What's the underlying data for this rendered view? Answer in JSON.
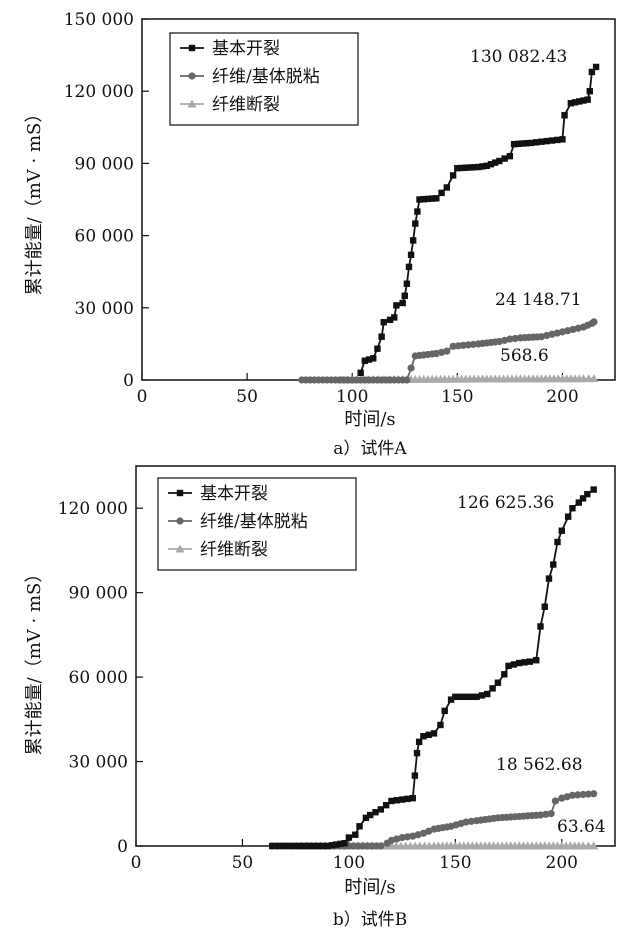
{
  "chart_data": [
    {
      "type": "line",
      "caption": "a）试件A",
      "xlabel": "时间/s",
      "ylabel": "累计能量/（mV · mS）",
      "xlim": [
        0,
        225
      ],
      "ylim": [
        0,
        150000
      ],
      "xticks": [
        "0",
        "50",
        "100",
        "150",
        "200"
      ],
      "yticks": [
        "0",
        "30 000",
        "60 000",
        "90 000",
        "120 000",
        "150 000"
      ],
      "legend_position": "top-left",
      "annotations": [
        "130 082.43",
        "24 148.71",
        "568.6"
      ],
      "series": [
        {
          "name": "基本开裂",
          "color": "#111111",
          "marker": "square",
          "final_value": 130082.43,
          "points": [
            [
              104,
              3000
            ],
            [
              106,
              8000
            ],
            [
              110,
              9000
            ],
            [
              112,
              13000
            ],
            [
              114,
              18000
            ],
            [
              115,
              24000
            ],
            [
              118,
              25000
            ],
            [
              120,
              26000
            ],
            [
              121,
              31000
            ],
            [
              124,
              32000
            ],
            [
              125,
              35000
            ],
            [
              126,
              40000
            ],
            [
              127,
              47000
            ],
            [
              128,
              52000
            ],
            [
              129,
              58000
            ],
            [
              130,
              65000
            ],
            [
              131,
              70000
            ],
            [
              132,
              75000
            ],
            [
              140,
              75500
            ],
            [
              145,
              80000
            ],
            [
              148,
              85000
            ],
            [
              150,
              88000
            ],
            [
              160,
              88500
            ],
            [
              164,
              89000
            ],
            [
              170,
              91000
            ],
            [
              175,
              93000
            ],
            [
              177,
              98000
            ],
            [
              185,
              98500
            ],
            [
              190,
              99000
            ],
            [
              195,
              99500
            ],
            [
              200,
              100000
            ],
            [
              201,
              110000
            ],
            [
              204,
              115000
            ],
            [
              212,
              116500
            ],
            [
              213,
              120000
            ],
            [
              214,
              128000
            ],
            [
              216,
              130082.43
            ]
          ]
        },
        {
          "name": "纤维/基体脱粘",
          "color": "#666666",
          "marker": "circle",
          "final_value": 24148.71,
          "points": [
            [
              76,
              0
            ],
            [
              80,
              0
            ],
            [
              90,
              0
            ],
            [
              100,
              0
            ],
            [
              110,
              0
            ],
            [
              120,
              0
            ],
            [
              126,
              0
            ],
            [
              128,
              5000
            ],
            [
              130,
              10000
            ],
            [
              140,
              11000
            ],
            [
              145,
              12000
            ],
            [
              148,
              14000
            ],
            [
              160,
              15000
            ],
            [
              170,
              16000
            ],
            [
              175,
              17000
            ],
            [
              180,
              17500
            ],
            [
              190,
              18000
            ],
            [
              195,
              19000
            ],
            [
              200,
              20000
            ],
            [
              205,
              21000
            ],
            [
              210,
              22000
            ],
            [
              214,
              23500
            ],
            [
              215,
              24148.71
            ]
          ]
        },
        {
          "name": "纤维断裂",
          "color": "#aaaaaa",
          "marker": "triangle",
          "final_value": 568.6,
          "points": [
            [
              95,
              0
            ],
            [
              100,
              0
            ],
            [
              105,
              100
            ],
            [
              110,
              150
            ],
            [
              115,
              100
            ],
            [
              120,
              200
            ],
            [
              130,
              250
            ],
            [
              140,
              300
            ],
            [
              150,
              350
            ],
            [
              160,
              400
            ],
            [
              170,
              430
            ],
            [
              180,
              460
            ],
            [
              190,
              490
            ],
            [
              200,
              520
            ],
            [
              210,
              550
            ],
            [
              215,
              568.6
            ]
          ]
        }
      ]
    },
    {
      "type": "line",
      "caption": "b）试件B",
      "xlabel": "时间/s",
      "ylabel": "累计能量/（mV · mS）",
      "xlim": [
        0,
        225
      ],
      "ylim": [
        0,
        135000
      ],
      "xticks": [
        "0",
        "50",
        "100",
        "150",
        "200"
      ],
      "yticks": [
        "0",
        "30 000",
        "60 000",
        "90 000",
        "120 000"
      ],
      "legend_position": "top-left",
      "annotations": [
        "126 625.36",
        "18 562.68",
        "63.64"
      ],
      "series": [
        {
          "name": "基本开裂",
          "color": "#111111",
          "marker": "square",
          "final_value": 126625.36,
          "points": [
            [
              64,
              0
            ],
            [
              80,
              0
            ],
            [
              90,
              0
            ],
            [
              98,
              1000
            ],
            [
              100,
              3000
            ],
            [
              103,
              4000
            ],
            [
              105,
              7000
            ],
            [
              108,
              10000
            ],
            [
              110,
              11000
            ],
            [
              115,
              13000
            ],
            [
              120,
              16000
            ],
            [
              125,
              16500
            ],
            [
              130,
              17000
            ],
            [
              131,
              25000
            ],
            [
              132,
              33000
            ],
            [
              133,
              37000
            ],
            [
              135,
              39000
            ],
            [
              140,
              40000
            ],
            [
              143,
              43000
            ],
            [
              145,
              48000
            ],
            [
              148,
              52000
            ],
            [
              150,
              53000
            ],
            [
              160,
              53000
            ],
            [
              165,
              54000
            ],
            [
              170,
              58000
            ],
            [
              173,
              61000
            ],
            [
              175,
              64000
            ],
            [
              180,
              65000
            ],
            [
              185,
              65500
            ],
            [
              188,
              66000
            ],
            [
              190,
              78000
            ],
            [
              192,
              85000
            ],
            [
              194,
              95000
            ],
            [
              196,
              100000
            ],
            [
              198,
              108000
            ],
            [
              200,
              112000
            ],
            [
              203,
              117000
            ],
            [
              205,
              120000
            ],
            [
              208,
              122000
            ],
            [
              212,
              125000
            ],
            [
              215,
              126625.36
            ]
          ]
        },
        {
          "name": "纤维/基体脱粘",
          "color": "#666666",
          "marker": "circle",
          "final_value": 18562.68,
          "points": [
            [
              64,
              0
            ],
            [
              80,
              0
            ],
            [
              100,
              0
            ],
            [
              115,
              0
            ],
            [
              118,
              1000
            ],
            [
              120,
              2000
            ],
            [
              125,
              3000
            ],
            [
              130,
              3500
            ],
            [
              135,
              4500
            ],
            [
              140,
              6000
            ],
            [
              148,
              7000
            ],
            [
              155,
              8500
            ],
            [
              160,
              9000
            ],
            [
              170,
              10000
            ],
            [
              180,
              10500
            ],
            [
              190,
              11000
            ],
            [
              195,
              11500
            ],
            [
              197,
              16000
            ],
            [
              200,
              17000
            ],
            [
              205,
              18000
            ],
            [
              210,
              18300
            ],
            [
              215,
              18562.68
            ]
          ]
        },
        {
          "name": "纤维断裂",
          "color": "#aaaaaa",
          "marker": "triangle",
          "final_value": 63.64,
          "points": [
            [
              78,
              0
            ],
            [
              100,
              0
            ],
            [
              120,
              10
            ],
            [
              140,
              20
            ],
            [
              150,
              25
            ],
            [
              160,
              30
            ],
            [
              170,
              35
            ],
            [
              180,
              40
            ],
            [
              190,
              45
            ],
            [
              200,
              50
            ],
            [
              210,
              58
            ],
            [
              215,
              63.64
            ]
          ]
        }
      ]
    }
  ]
}
